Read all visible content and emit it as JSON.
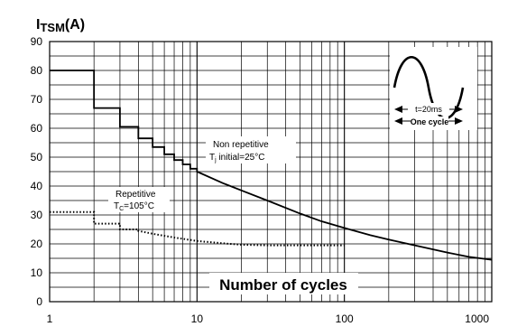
{
  "chart_data": {
    "type": "line",
    "title": "ITSM(A)",
    "title_main": "I",
    "title_sub": "TSM",
    "title_unit": "(A)",
    "xlabel": "Number of cycles",
    "ylabel": "",
    "x_scale": "log",
    "xlim": [
      1,
      1000
    ],
    "ylim": [
      0,
      90
    ],
    "grid": true,
    "x_ticks": [
      1,
      10,
      100,
      1000
    ],
    "x_tick_labels": [
      "1",
      "10",
      "100",
      "1000"
    ],
    "y_ticks": [
      0,
      10,
      20,
      30,
      40,
      50,
      60,
      70,
      80,
      90
    ],
    "y_tick_labels": [
      "0",
      "10",
      "20",
      "30",
      "40",
      "50",
      "60",
      "70",
      "80",
      "90"
    ],
    "series": [
      {
        "style": "solid",
        "color": "#000000",
        "label_line1": "Non repetitive",
        "label_line2_main": "T",
        "label_line2_sub": "j",
        "label_line2_rest": " initial=25°C",
        "steps": [
          [
            1,
            2,
            80
          ],
          [
            2,
            3,
            67
          ],
          [
            3,
            4,
            60.5
          ],
          [
            4,
            5,
            56.5
          ],
          [
            5,
            6,
            53.5
          ],
          [
            6,
            7,
            51
          ],
          [
            7,
            8,
            49
          ],
          [
            8,
            9,
            47.5
          ],
          [
            9,
            10,
            46
          ]
        ],
        "curve": [
          [
            10,
            45
          ],
          [
            15,
            41
          ],
          [
            20,
            38.5
          ],
          [
            30,
            35
          ],
          [
            50,
            30.5
          ],
          [
            70,
            27.8
          ],
          [
            100,
            25.5
          ],
          [
            150,
            23
          ],
          [
            200,
            21.5
          ],
          [
            300,
            19.5
          ],
          [
            500,
            17
          ],
          [
            700,
            15.5
          ],
          [
            1000,
            14.5
          ]
        ]
      },
      {
        "style": "dotted",
        "color": "#000000",
        "label_line1": "Repetitive",
        "label_line2_main": "T",
        "label_line2_sub": "C",
        "label_line2_rest": "=105°C",
        "steps": [
          [
            1,
            2,
            31
          ],
          [
            2,
            3,
            27
          ],
          [
            3,
            4,
            25
          ]
        ],
        "curve": [
          [
            4,
            24.5
          ],
          [
            5,
            23.5
          ],
          [
            7,
            22.2
          ],
          [
            10,
            21
          ],
          [
            15,
            20.2
          ],
          [
            20,
            19.7
          ],
          [
            30,
            19.5
          ],
          [
            50,
            19.5
          ],
          [
            100,
            19.5
          ]
        ]
      }
    ],
    "inset": {
      "period_label": "t=20ms",
      "cycle_label": "One cycle"
    }
  }
}
